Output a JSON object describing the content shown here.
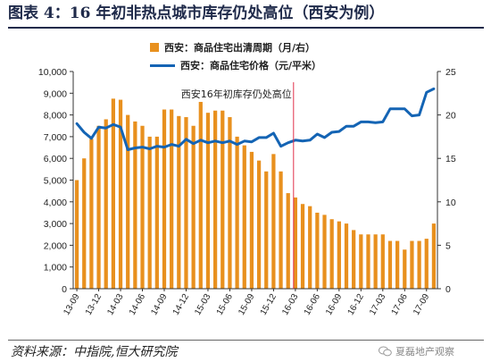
{
  "title": "图表 4：16 年初非热点城市库存仍处高位（西安为例）",
  "source": "资料来源：中指院,恒大研究院",
  "watermark": "夏磊地产观察",
  "colors": {
    "bar": "#E8901E",
    "line": "#1464B4",
    "marker": "#E0304A",
    "axis": "#333333",
    "grid": "#d8d8d8"
  },
  "icons": {
    "watermark": "wechat-icon"
  },
  "chart_data": {
    "type": "bar",
    "title": "",
    "xlabel": "",
    "ylabel": "",
    "categories": [
      "13-09",
      "13-10",
      "13-11",
      "13-12",
      "14-01",
      "14-02",
      "14-03",
      "14-04",
      "14-05",
      "14-06",
      "14-07",
      "14-08",
      "14-09",
      "14-10",
      "14-11",
      "14-12",
      "15-01",
      "15-02",
      "15-03",
      "15-04",
      "15-05",
      "15-06",
      "15-07",
      "15-08",
      "15-09",
      "15-10",
      "15-11",
      "15-12",
      "16-01",
      "16-02",
      "16-03",
      "16-04",
      "16-05",
      "16-06",
      "16-07",
      "16-08",
      "16-09",
      "16-10",
      "16-11",
      "16-12",
      "17-01",
      "17-02",
      "17-03",
      "17-04",
      "17-05",
      "17-06",
      "17-07",
      "17-08",
      "17-09",
      "17-10"
    ],
    "tick_labels": [
      "13-09",
      "13-12",
      "14-03",
      "14-06",
      "14-09",
      "14-12",
      "15-03",
      "15-06",
      "15-09",
      "15-12",
      "16-03",
      "16-06",
      "16-09",
      "16-12",
      "17-03",
      "17-06",
      "17-09"
    ],
    "series": [
      {
        "name": "西安：商品住宅出清周期（月/右）",
        "type": "bar",
        "axis": "left",
        "values": [
          5000,
          6000,
          6900,
          7500,
          7800,
          8750,
          8700,
          8000,
          7700,
          7500,
          7000,
          7000,
          8250,
          8250,
          7950,
          7900,
          7500,
          8600,
          8100,
          8200,
          8200,
          7900,
          7000,
          6600,
          6300,
          5900,
          5400,
          6200,
          5400,
          4400,
          4200,
          3900,
          3800,
          3500,
          3400,
          3200,
          3100,
          3000,
          2700,
          2500,
          2500,
          2500,
          2500,
          2200,
          2200,
          1800,
          2200,
          2200,
          2300,
          3000
        ]
      },
      {
        "name": "西安：商品住宅价格（元/平米）",
        "type": "line",
        "axis": "right",
        "values": [
          19,
          18,
          17.3,
          18.6,
          18.5,
          18.9,
          18.6,
          16,
          16.2,
          16.3,
          16.1,
          16.4,
          16.3,
          16.6,
          16.4,
          17.2,
          16.7,
          17.1,
          16.8,
          17,
          16.8,
          17,
          16.6,
          17,
          16.9,
          17.4,
          17.4,
          17.9,
          16.4,
          16.8,
          17.1,
          17.0,
          17.1,
          17.8,
          17.4,
          18.0,
          18.1,
          18.7,
          18.7,
          19.2,
          19.2,
          19.1,
          19.2,
          20.7,
          20.7,
          20.7,
          19.9,
          20.0,
          22.6,
          23.0
        ]
      }
    ],
    "y_left": {
      "min": 0,
      "max": 10000,
      "ticks": [
        "0",
        "1,000",
        "2,000",
        "3,000",
        "4,000",
        "5,000",
        "6,000",
        "7,000",
        "8,000",
        "9,000",
        "10,000"
      ]
    },
    "y_right": {
      "min": 0,
      "max": 25,
      "ticks": [
        "0",
        "5",
        "10",
        "15",
        "20",
        "25"
      ]
    },
    "annotation": {
      "text": "西安16年初库存仍处高位",
      "category": "16-03"
    },
    "legend_position": "top-center",
    "grid": false
  }
}
